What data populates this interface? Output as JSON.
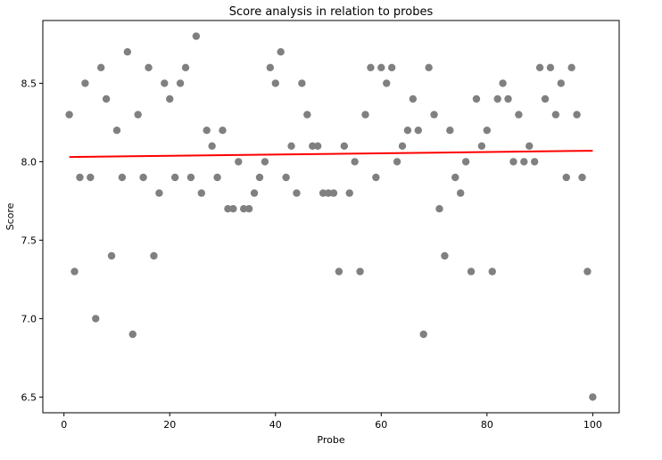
{
  "chart_data": {
    "type": "scatter",
    "title": "Score analysis in relation to probes",
    "xlabel": "Probe",
    "ylabel": "Score",
    "xlim": [
      -4,
      105
    ],
    "ylim": [
      6.4,
      8.9
    ],
    "xticks": [
      0,
      20,
      40,
      60,
      80,
      100
    ],
    "yticks": [
      6.5,
      7.0,
      7.5,
      8.0,
      8.5
    ],
    "xtick_labels": [
      "0",
      "20",
      "40",
      "60",
      "80",
      "100"
    ],
    "ytick_labels": [
      "6.5",
      "7.0",
      "7.5",
      "8.0",
      "8.5"
    ],
    "grid": false,
    "colors": {
      "points": "#808080",
      "trend": "#ff0000"
    },
    "series": [
      {
        "type": "scatter",
        "x": [
          1,
          2,
          3,
          4,
          5,
          6,
          7,
          8,
          9,
          10,
          11,
          12,
          13,
          14,
          15,
          16,
          17,
          18,
          19,
          20,
          21,
          22,
          23,
          24,
          25,
          26,
          27,
          28,
          29,
          30,
          31,
          32,
          33,
          34,
          35,
          36,
          37,
          38,
          39,
          40,
          41,
          42,
          43,
          44,
          45,
          46,
          47,
          48,
          49,
          50,
          51,
          52,
          53,
          54,
          55,
          56,
          57,
          58,
          59,
          60,
          61,
          62,
          63,
          64,
          65,
          66,
          67,
          68,
          69,
          70,
          71,
          72,
          73,
          74,
          75,
          76,
          77,
          78,
          79,
          80,
          81,
          82,
          83,
          84,
          85,
          86,
          87,
          88,
          89,
          90,
          91,
          92,
          93,
          94,
          95,
          96,
          97,
          98,
          99,
          100
        ],
        "y": [
          8.3,
          7.3,
          7.9,
          8.5,
          7.9,
          7.0,
          8.6,
          8.4,
          7.4,
          8.2,
          7.9,
          8.7,
          6.9,
          8.3,
          7.9,
          8.6,
          7.4,
          7.8,
          8.5,
          8.4,
          7.9,
          8.5,
          8.6,
          7.9,
          8.8,
          7.8,
          8.2,
          8.1,
          7.9,
          8.2,
          7.7,
          7.7,
          8.0,
          7.7,
          7.7,
          7.8,
          7.9,
          8.0,
          8.6,
          8.5,
          8.7,
          7.9,
          8.1,
          7.8,
          8.5,
          8.3,
          8.1,
          8.1,
          7.8,
          7.8,
          7.8,
          7.3,
          8.1,
          7.8,
          8.0,
          7.3,
          8.3,
          8.6,
          7.9,
          8.6,
          8.5,
          8.6,
          8.0,
          8.1,
          8.2,
          8.4,
          8.2,
          6.9,
          8.6,
          8.3,
          7.7,
          7.4,
          8.2,
          7.9,
          7.8,
          8.0,
          7.3,
          8.4,
          8.1,
          8.2,
          7.3,
          8.4,
          8.5,
          8.4,
          8.0,
          8.3,
          8.0,
          8.1,
          8.0,
          8.6,
          8.4,
          8.6,
          8.3,
          8.5,
          7.9,
          8.6,
          8.3,
          7.9,
          7.3,
          6.5
        ]
      },
      {
        "type": "line",
        "x": [
          1,
          100
        ],
        "y": [
          8.03,
          8.07
        ]
      }
    ]
  }
}
